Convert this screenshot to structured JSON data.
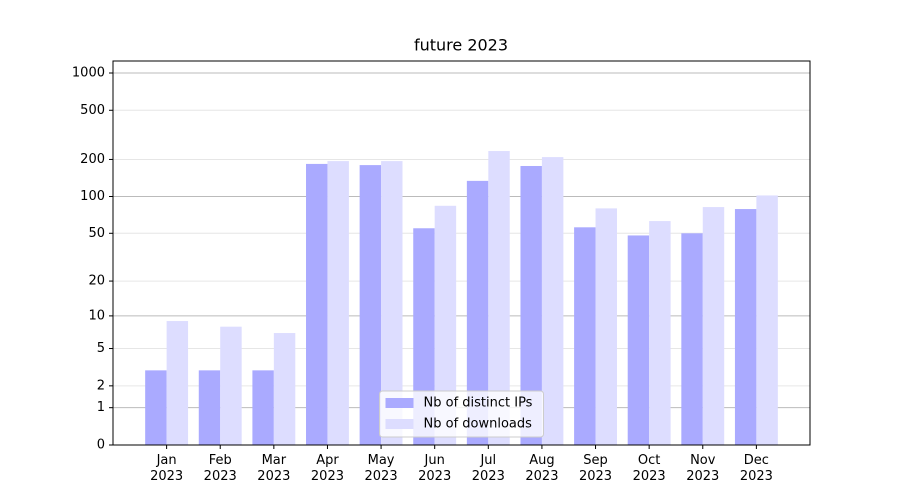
{
  "chart_data": {
    "type": "bar",
    "title": "future 2023",
    "categories": [
      "Jan\n2023",
      "Feb\n2023",
      "Mar\n2023",
      "Apr\n2023",
      "May\n2023",
      "Jun\n2023",
      "Jul\n2023",
      "Aug\n2023",
      "Sep\n2023",
      "Oct\n2023",
      "Nov\n2023",
      "Dec\n2023"
    ],
    "series": [
      {
        "name": "Nb of distinct IPs",
        "color": "#aaaaff",
        "values": [
          3,
          3,
          3,
          184,
          180,
          55,
          134,
          177,
          56,
          48,
          50,
          79
        ]
      },
      {
        "name": "Nb of downloads",
        "color": "#ddddff",
        "values": [
          9,
          8,
          7,
          194,
          194,
          84,
          234,
          209,
          80,
          63,
          82,
          102
        ]
      }
    ],
    "yscale": "log1p",
    "ylim": [
      0,
      1250
    ],
    "yticks": [
      0,
      1,
      2,
      5,
      10,
      20,
      50,
      100,
      200,
      500,
      1000
    ],
    "grid": true,
    "legend": "lower center"
  }
}
